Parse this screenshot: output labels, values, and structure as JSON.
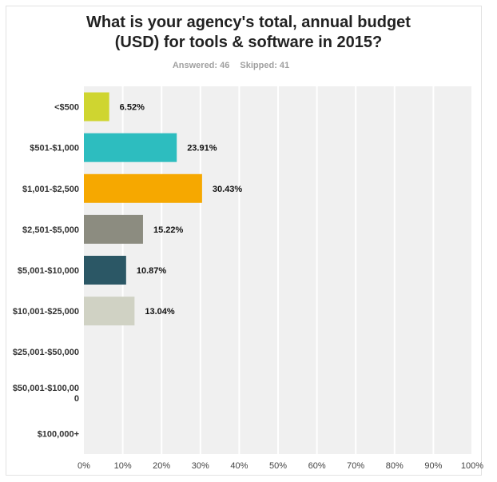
{
  "chart_data": {
    "type": "bar",
    "orientation": "horizontal",
    "title": "What is your agency's total, annual budget (USD) for tools & software in 2015?",
    "title_lines": [
      "What is your agency's total, annual budget",
      "(USD) for tools & software in 2015?"
    ],
    "answered_label": "Answered: 46",
    "skipped_label": "Skipped: 41",
    "categories": [
      "<$500",
      "$501-$1,000",
      "$1,001-$2,500",
      "$2,501-$5,000",
      "$5,001-$10,000",
      "$10,001-$25,000",
      "$25,001-$50,000",
      "$50,001-$100,000",
      "$100,000+"
    ],
    "category_label_lines": [
      [
        "<$500"
      ],
      [
        "$501-$1,000"
      ],
      [
        "$1,001-$2,500"
      ],
      [
        "$2,501-$5,000"
      ],
      [
        "$5,001-$10,000"
      ],
      [
        "$10,001-$25,000"
      ],
      [
        "$25,001-$50,000"
      ],
      [
        "$50,001-$100,00",
        "0"
      ],
      [
        "$100,000+"
      ]
    ],
    "values": [
      6.52,
      23.91,
      30.43,
      15.22,
      10.87,
      13.04,
      0,
      0,
      0
    ],
    "value_labels": [
      "6.52%",
      "23.91%",
      "30.43%",
      "15.22%",
      "10.87%",
      "13.04%",
      "",
      "",
      ""
    ],
    "colors": [
      "#cfd530",
      "#2dbdbf",
      "#f6a800",
      "#8c8c80",
      "#2b5765",
      "#d0d2c4",
      "#cccccc",
      "#cccccc",
      "#cccccc"
    ],
    "xlim": [
      0,
      100
    ],
    "xticks": [
      0,
      10,
      20,
      30,
      40,
      50,
      60,
      70,
      80,
      90,
      100
    ],
    "xtick_labels": [
      "0%",
      "10%",
      "20%",
      "30%",
      "40%",
      "50%",
      "60%",
      "70%",
      "80%",
      "90%",
      "100%"
    ],
    "grid": true,
    "plot_background": "#f0f0f0",
    "gridline_color": "#ffffff"
  }
}
